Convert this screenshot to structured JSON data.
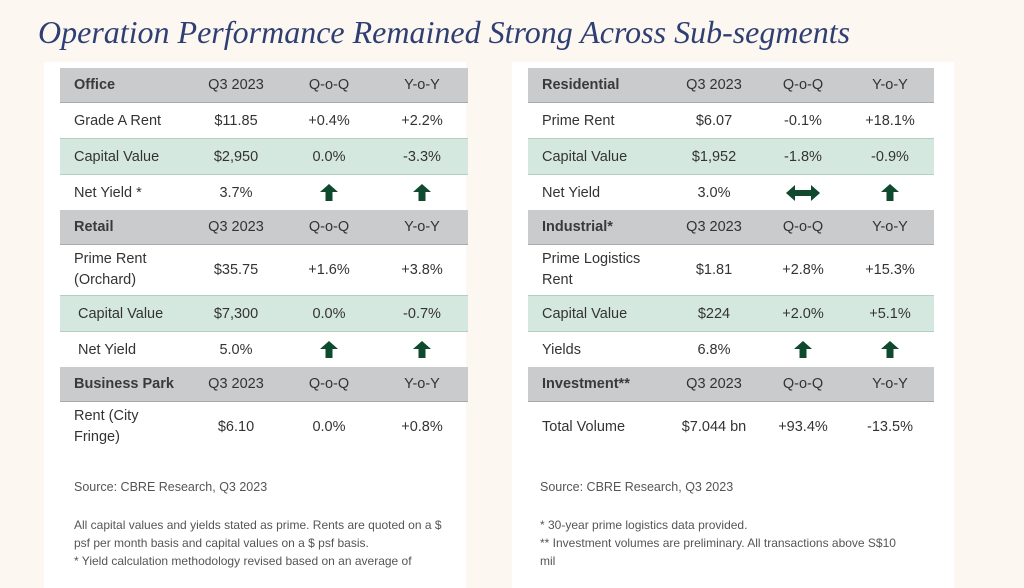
{
  "title": "Operation Performance Remained Strong Across Sub-segments",
  "colors": {
    "title": "#2f3f73",
    "header_bg": "#c9cbcd",
    "highlight_row": "#d5e8e0",
    "arrow": "#0f4a2e"
  },
  "left": {
    "office": {
      "header": [
        "Office",
        "Q3 2023",
        "Q-o-Q",
        "Y-o-Y"
      ],
      "rows": [
        {
          "label": "Grade A Rent",
          "q3": "$11.85",
          "qoq": "+0.4%",
          "yoy": "+2.2%"
        },
        {
          "label": "Capital Value",
          "q3": "$2,950",
          "qoq": "0.0%",
          "yoy": "-3.3%"
        },
        {
          "label": "Net Yield *",
          "q3": "3.7%",
          "qoq_icon": "arrow-up-icon",
          "yoy_icon": "arrow-up-icon"
        }
      ]
    },
    "retail": {
      "header": [
        "Retail",
        "Q3 2023",
        "Q-o-Q",
        "Y-o-Y"
      ],
      "rows": [
        {
          "label_line1": "Prime Rent",
          "label_line2": "(Orchard)",
          "q3": "$35.75",
          "qoq": "+1.6%",
          "yoy": "+3.8%"
        },
        {
          "label": "Capital Value",
          "q3": "$7,300",
          "qoq": "0.0%",
          "yoy": "-0.7%"
        },
        {
          "label": "Net Yield",
          "q3": "5.0%",
          "qoq_icon": "arrow-up-icon",
          "yoy_icon": "arrow-up-icon"
        }
      ]
    },
    "business_park": {
      "header": [
        "Business Park",
        "Q3 2023",
        "Q-o-Q",
        "Y-o-Y"
      ],
      "rows": [
        {
          "label_line1": "Rent (City",
          "label_line2": "Fringe)",
          "q3": "$6.10",
          "qoq": "0.0%",
          "yoy": "+0.8%"
        }
      ]
    },
    "source": "Source: CBRE Research, Q3 2023",
    "notes": [
      "All capital values and yields stated as prime. Rents are quoted on a $",
      "psf per month basis and capital values on a $ psf basis.",
      "* Yield calculation methodology  revised based on an average of"
    ]
  },
  "right": {
    "residential": {
      "header": [
        "Residential",
        "Q3 2023",
        "Q-o-Q",
        "Y-o-Y"
      ],
      "rows": [
        {
          "label": "Prime Rent",
          "q3": "$6.07",
          "qoq": "-0.1%",
          "yoy": "+18.1%"
        },
        {
          "label": "Capital Value",
          "q3": "$1,952",
          "qoq": "-1.8%",
          "yoy": "-0.9%"
        },
        {
          "label": "Net Yield",
          "q3": "3.0%",
          "qoq_icon": "double-arrow-icon",
          "yoy_icon": "arrow-up-icon"
        }
      ]
    },
    "industrial": {
      "header": [
        "Industrial*",
        "Q3 2023",
        "Q-o-Q",
        "Y-o-Y"
      ],
      "rows": [
        {
          "label_line1": "Prime Logistics",
          "label_line2": "Rent",
          "q3": "$1.81",
          "qoq": "+2.8%",
          "yoy": "+15.3%"
        },
        {
          "label": "Capital Value",
          "q3": "$224",
          "qoq": "+2.0%",
          "yoy": "+5.1%"
        },
        {
          "label": "Yields",
          "q3": "6.8%",
          "qoq_icon": "arrow-up-icon",
          "yoy_icon": "arrow-up-icon"
        }
      ]
    },
    "investment": {
      "header": [
        "Investment**",
        "Q3 2023",
        "Q-o-Q",
        "Y-o-Y"
      ],
      "rows": [
        {
          "label": "Total Volume",
          "q3": "$7.044 bn",
          "qoq": "+93.4%",
          "yoy": "-13.5%"
        }
      ]
    },
    "source": "Source: CBRE Research, Q3 2023",
    "notes": [
      "* 30-year prime logistics data provided.",
      "** Investment volumes are preliminary.  All transactions above S$10",
      "mil"
    ]
  }
}
